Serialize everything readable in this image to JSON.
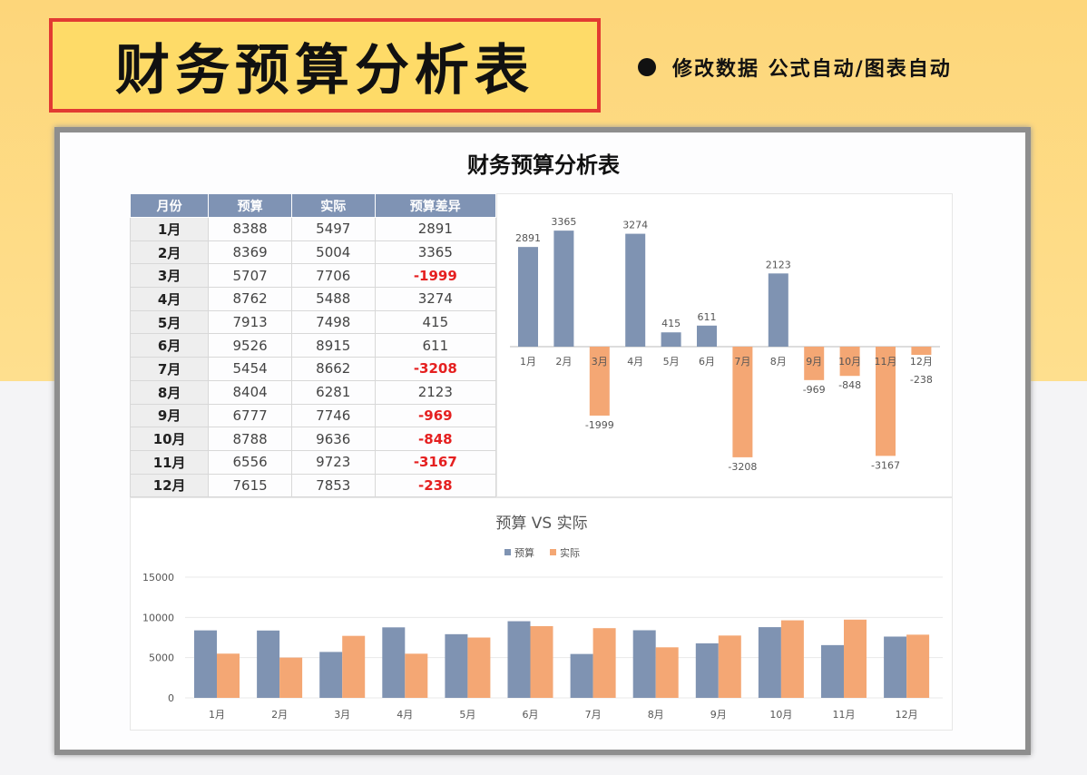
{
  "banner": {
    "title": "财务预算分析表",
    "tagline": "修改数据  公式自动/图表自动"
  },
  "sheet": {
    "title": "财务预算分析表"
  },
  "table": {
    "headers": [
      "月份",
      "预算",
      "实际",
      "预算差异"
    ],
    "rows": [
      [
        "1月",
        "8388",
        "5497",
        "2891"
      ],
      [
        "2月",
        "8369",
        "5004",
        "3365"
      ],
      [
        "3月",
        "5707",
        "7706",
        "-1999"
      ],
      [
        "4月",
        "8762",
        "5488",
        "3274"
      ],
      [
        "5月",
        "7913",
        "7498",
        "415"
      ],
      [
        "6月",
        "9526",
        "8915",
        "611"
      ],
      [
        "7月",
        "5454",
        "8662",
        "-3208"
      ],
      [
        "8月",
        "8404",
        "6281",
        "2123"
      ],
      [
        "9月",
        "6777",
        "7746",
        "-969"
      ],
      [
        "10月",
        "8788",
        "9636",
        "-848"
      ],
      [
        "11月",
        "6556",
        "9723",
        "-3167"
      ],
      [
        "12月",
        "7615",
        "7853",
        "-238"
      ]
    ]
  },
  "chart_data": [
    {
      "type": "bar",
      "title": "",
      "categories": [
        "1月",
        "2月",
        "3月",
        "4月",
        "5月",
        "6月",
        "7月",
        "8月",
        "9月",
        "10月",
        "11月",
        "12月"
      ],
      "values": [
        2891,
        3365,
        -1999,
        3274,
        415,
        611,
        -3208,
        2123,
        -969,
        -848,
        -3167,
        -238
      ],
      "colors": {
        "positive": "#7f93b2",
        "negative": "#f4a774"
      },
      "data_labels": true
    },
    {
      "type": "bar",
      "title": "预算 VS 实际",
      "categories": [
        "1月",
        "2月",
        "3月",
        "4月",
        "5月",
        "6月",
        "7月",
        "8月",
        "9月",
        "10月",
        "11月",
        "12月"
      ],
      "series": [
        {
          "name": "预算",
          "color": "#7f93b2",
          "values": [
            8388,
            8369,
            5707,
            8762,
            7913,
            9526,
            5454,
            8404,
            6777,
            8788,
            6556,
            7615
          ]
        },
        {
          "name": "实际",
          "color": "#f4a774",
          "values": [
            5497,
            5004,
            7706,
            5488,
            7498,
            8915,
            8662,
            6281,
            7746,
            9636,
            9723,
            7853
          ]
        }
      ],
      "ylim": [
        0,
        15000
      ],
      "yticks": [
        "0",
        "5000",
        "10000",
        "15000"
      ],
      "grid": true,
      "legend": "top"
    }
  ]
}
